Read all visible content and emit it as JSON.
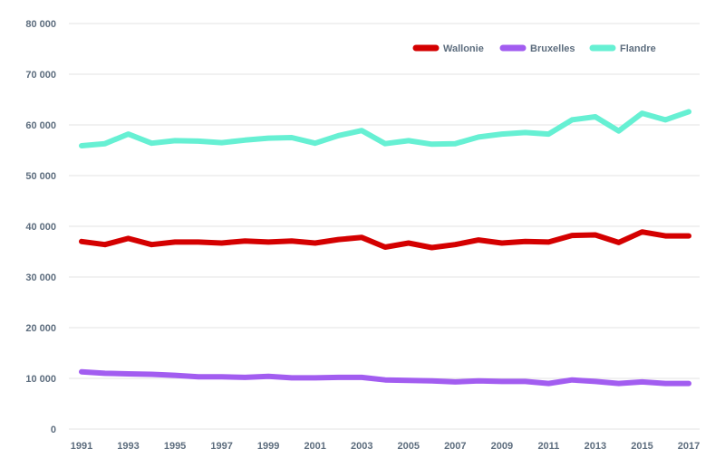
{
  "chart_data": {
    "type": "line",
    "x": [
      1991,
      1992,
      1993,
      1994,
      1995,
      1996,
      1997,
      1998,
      1999,
      2000,
      2001,
      2002,
      2003,
      2004,
      2005,
      2006,
      2007,
      2008,
      2009,
      2010,
      2011,
      2012,
      2013,
      2014,
      2015,
      2016,
      2017
    ],
    "x_tick_labels": [
      "1991",
      "1993",
      "1995",
      "1997",
      "1999",
      "2001",
      "2003",
      "2005",
      "2007",
      "2009",
      "2011",
      "2013",
      "2015",
      "2017"
    ],
    "y_tick_labels": [
      "0",
      "10 000",
      "20 000",
      "30 000",
      "40 000",
      "50 000",
      "60 000",
      "70 000",
      "80 000"
    ],
    "ylim": [
      0,
      80000
    ],
    "y_ticks": [
      0,
      10000,
      20000,
      30000,
      40000,
      50000,
      60000,
      70000,
      80000
    ],
    "grid": true,
    "legend_position": "top-right",
    "series": [
      {
        "name": "Wallonie",
        "color": "#d40000",
        "values": [
          37000,
          36400,
          37600,
          36400,
          36900,
          36900,
          36700,
          37100,
          36900,
          37100,
          36700,
          37400,
          37800,
          35900,
          36700,
          35800,
          36400,
          37300,
          36700,
          37000,
          36900,
          38200,
          38300,
          36800,
          38900,
          38100,
          38100
        ]
      },
      {
        "name": "Bruxelles",
        "color": "#a25df0",
        "values": [
          11300,
          11000,
          10900,
          10800,
          10600,
          10300,
          10300,
          10200,
          10400,
          10100,
          10100,
          10200,
          10200,
          9700,
          9600,
          9500,
          9300,
          9500,
          9400,
          9400,
          9000,
          9700,
          9400,
          9000,
          9300,
          9000,
          9000
        ]
      },
      {
        "name": "Flandre",
        "color": "#66f0d3",
        "values": [
          55900,
          56300,
          58200,
          56400,
          56900,
          56800,
          56500,
          57000,
          57400,
          57500,
          56400,
          57900,
          58900,
          56300,
          56900,
          56200,
          56300,
          57600,
          58200,
          58500,
          58200,
          61000,
          61600,
          58800,
          62300,
          61000,
          62600
        ]
      }
    ]
  }
}
